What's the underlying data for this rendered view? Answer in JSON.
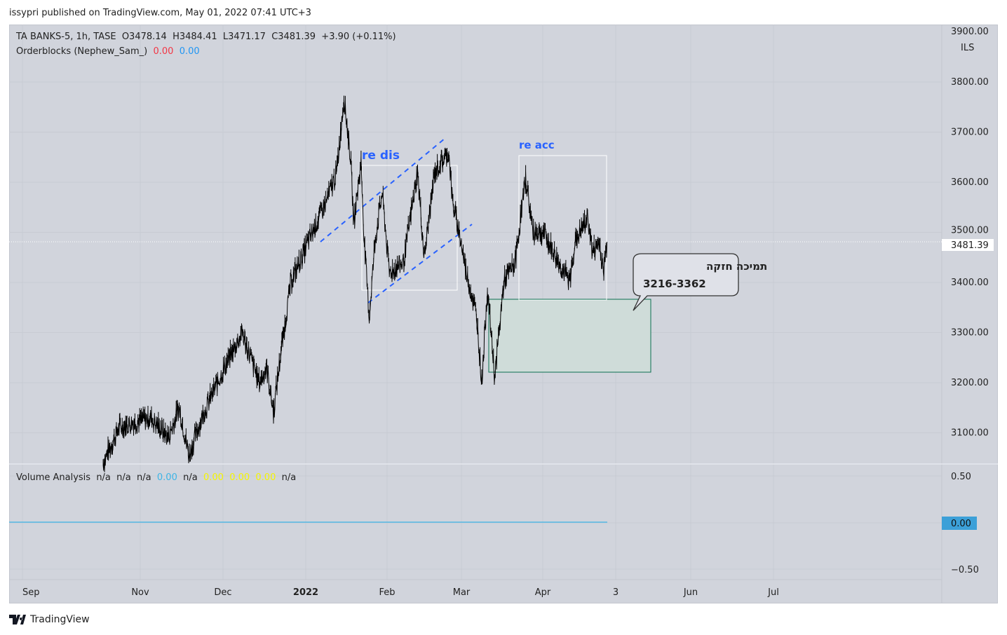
{
  "header": {
    "published": "issypri published on TradingView.com, May 01, 2022 07:41 UTC+3"
  },
  "legend": {
    "symbol": "TA BANKS-5, 1h, TASE",
    "open": "O3478.14",
    "high": "H3484.41",
    "low": "L3471.17",
    "close": "C3481.39",
    "change": "+3.90 (+0.11%)",
    "orderblocks": "Orderblocks (Nephew_Sam_)",
    "ob_val1": "0.00",
    "ob_val2": "0.00"
  },
  "volume_legend": {
    "name": "Volume Analysis",
    "values": [
      "n/a",
      "n/a",
      "n/a",
      "0.00",
      "n/a",
      "0.00",
      "0.00",
      "0.00",
      "n/a"
    ]
  },
  "footer": {
    "brand": "TradingView"
  },
  "colors": {
    "background": "#d1d4dc",
    "price": "#000000",
    "channel": "#2962ff",
    "zone": "#0b6e4f",
    "volume_line": "#3cb4e6"
  },
  "chart_data": {
    "type": "line",
    "title": "TA BANKS-5, 1h, TASE",
    "currency": "ILS",
    "y_ticks": [
      "3800.00",
      "3700.00",
      "3600.00",
      "3500.00",
      "3400.00",
      "3300.00",
      "3200.00",
      "3100.00"
    ],
    "y_top_tick": "3900.00",
    "ylim": [
      3040,
      3900
    ],
    "last_price": "3481.39",
    "x_ticks": [
      "Sep",
      "Nov",
      "Dec",
      "2022",
      "Feb",
      "Mar",
      "Apr",
      "3",
      "Jun",
      "Jul"
    ],
    "x_tick_months": [
      0,
      2,
      3,
      4,
      5,
      6,
      7,
      8,
      9,
      10
    ],
    "x_unit": "months since Sep 2021",
    "series": [
      {
        "name": "TA BANKS-5",
        "points": [
          [
            1.37,
            3040
          ],
          [
            1.64,
            3110
          ],
          [
            1.88,
            3120
          ],
          [
            2.13,
            3130
          ],
          [
            2.34,
            3090
          ],
          [
            2.47,
            3150
          ],
          [
            2.59,
            3055
          ],
          [
            2.72,
            3120
          ],
          [
            2.85,
            3170
          ],
          [
            3.02,
            3230
          ],
          [
            3.23,
            3300
          ],
          [
            3.31,
            3260
          ],
          [
            3.44,
            3200
          ],
          [
            3.53,
            3230
          ],
          [
            3.61,
            3140
          ],
          [
            3.69,
            3250
          ],
          [
            3.82,
            3400
          ],
          [
            3.95,
            3450
          ],
          [
            4.08,
            3500
          ],
          [
            4.25,
            3560
          ],
          [
            4.38,
            3620
          ],
          [
            4.47,
            3770
          ],
          [
            4.55,
            3650
          ],
          [
            4.59,
            3520
          ],
          [
            4.68,
            3640
          ],
          [
            4.72,
            3480
          ],
          [
            4.78,
            3330
          ],
          [
            4.85,
            3480
          ],
          [
            4.94,
            3580
          ],
          [
            5.03,
            3420
          ],
          [
            5.22,
            3440
          ],
          [
            5.41,
            3620
          ],
          [
            5.5,
            3450
          ],
          [
            5.64,
            3620
          ],
          [
            5.83,
            3660
          ],
          [
            5.88,
            3560
          ],
          [
            5.97,
            3500
          ],
          [
            6.06,
            3420
          ],
          [
            6.19,
            3330
          ],
          [
            6.25,
            3200
          ],
          [
            6.32,
            3390
          ],
          [
            6.41,
            3210
          ],
          [
            6.52,
            3400
          ],
          [
            6.66,
            3440
          ],
          [
            6.79,
            3610
          ],
          [
            6.88,
            3500
          ],
          [
            7.01,
            3500
          ],
          [
            7.25,
            3430
          ],
          [
            7.37,
            3400
          ],
          [
            7.44,
            3480
          ],
          [
            7.62,
            3530
          ],
          [
            7.68,
            3460
          ],
          [
            7.78,
            3480
          ],
          [
            7.83,
            3420
          ],
          [
            7.88,
            3481
          ]
        ]
      }
    ],
    "annotations": {
      "re_dis": "re dis",
      "re_acc": "re acc",
      "callout_line1": "תמיכה חזקה",
      "callout_line2": "3216-3362",
      "zone_range": [
        3216,
        3362
      ]
    },
    "volume_pane": {
      "y_ticks": [
        "0.50",
        "0.00",
        "−0.50"
      ],
      "last_value": "0.00"
    }
  }
}
